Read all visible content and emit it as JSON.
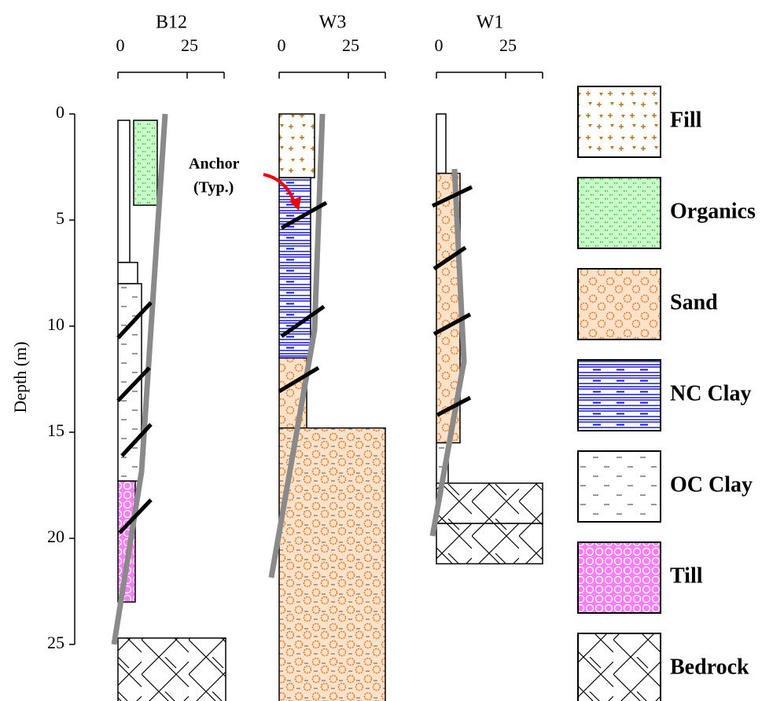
{
  "depth_axis": {
    "label": "Depth (m)",
    "ticks": [
      0,
      5,
      10,
      15,
      20,
      25
    ]
  },
  "boreholes": [
    {
      "name": "B12",
      "top_ticks": [
        0,
        25
      ]
    },
    {
      "name": "W3",
      "top_ticks": [
        0,
        25
      ]
    },
    {
      "name": "W1",
      "top_ticks": [
        0,
        25
      ]
    }
  ],
  "annotation": {
    "line1": "Anchor",
    "line2": "(Typ.)"
  },
  "legend": [
    "Fill",
    "Organics",
    "Sand",
    "NC Clay",
    "OC Clay",
    "Till",
    "Bedrock"
  ]
}
